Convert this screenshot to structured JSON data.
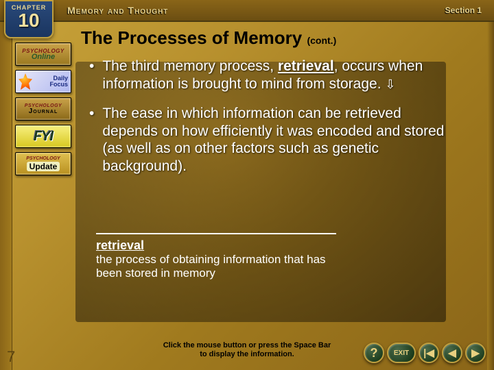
{
  "header": {
    "chapter_label": "CHAPTER",
    "chapter_number": "10",
    "title": "Memory and Thought",
    "section": "Section 1"
  },
  "colors": {
    "slide_bg_gradient": [
      "#c9a43a",
      "#b8912e",
      "#a07a1e",
      "#8a6518"
    ],
    "header_bg": [
      "#8a6518",
      "#6b4e12"
    ],
    "chapter_box_bg": [
      "#2a4a7a",
      "#1a3560"
    ],
    "chapter_text": "#e8d490",
    "title_color": "#000000",
    "body_text": "#ffffff",
    "nav_button_bg": [
      "#4a6a4a",
      "#1a3a1a"
    ],
    "nav_button_border": "#c0a040"
  },
  "typography": {
    "title_fontsize": 26,
    "bullet_fontsize": 21,
    "def_fontsize": 17,
    "footer_fontsize": 11
  },
  "title": {
    "main": "The Processes of Memory",
    "cont": "(cont.)"
  },
  "bullets": [
    {
      "pre": "The third memory process, ",
      "bold": "retrieval",
      "post": ", occurs when information is brought to mind from storage. ",
      "arrow": "⇩"
    },
    {
      "text": "The ease in which information can be retrieved depends on how efficiently it was encoded and stored (as well as on other factors such as genetic background)."
    }
  ],
  "definition": {
    "term": "retrieval",
    "text": "the process of obtaining information that has been stored in memory"
  },
  "footer": {
    "line1": "Click the mouse button or press the Space Bar",
    "line2": "to display the information."
  },
  "page_number": "7",
  "sidebar": [
    {
      "id": "online",
      "line1": "PSYCHOLOGY",
      "line2": "Online"
    },
    {
      "id": "daily-focus",
      "text": "Daily\nFocus"
    },
    {
      "id": "journal",
      "line1": "PSYCHOLOGY",
      "line2": "Journal"
    },
    {
      "id": "fyi",
      "text": "FYI"
    },
    {
      "id": "update",
      "line1": "PSYCHOLOGY",
      "line2": "Update"
    }
  ],
  "nav": {
    "help": "?",
    "exit": "EXIT",
    "first": "|◀",
    "prev": "◀",
    "next": "▶"
  }
}
